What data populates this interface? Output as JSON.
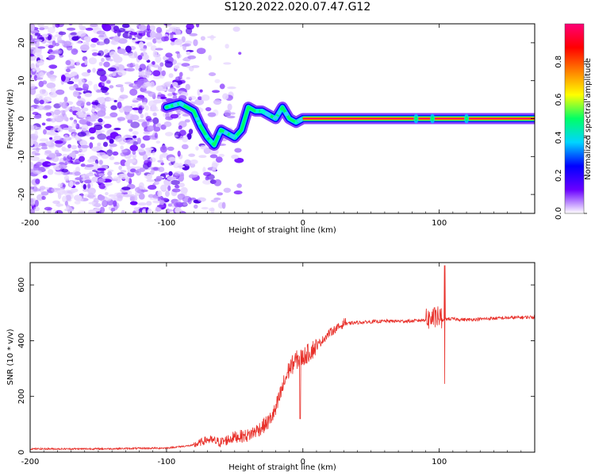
{
  "title": "S120.2022.020.07.47.G12",
  "chart_data": [
    {
      "type": "heatmap",
      "xlabel": "Height of straight line (km)",
      "ylabel": "Frequency (Hz)",
      "xlim": [
        -200,
        170
      ],
      "ylim": [
        -25,
        25
      ],
      "x_ticks": [
        -200,
        -100,
        0,
        100
      ],
      "y_ticks": [
        -20,
        -10,
        0,
        10,
        20
      ],
      "colorbar": {
        "label": "Normalized spectral amplitude",
        "range": [
          0,
          1
        ],
        "ticks": [
          "0.0",
          "0.2",
          "0.4",
          "0.6",
          "0.8"
        ],
        "colors": [
          "#ffffff",
          "#6a00ff",
          "#0000ff",
          "#00d5ff",
          "#00ff66",
          "#ffff00",
          "#ff8000",
          "#ff0000",
          "#ff0077"
        ]
      },
      "ridge": {
        "x": [
          -100,
          -90,
          -80,
          -75,
          -70,
          -65,
          -60,
          -55,
          -50,
          -45,
          -40,
          -35,
          -30,
          -25,
          -20,
          -15,
          -10,
          -5,
          0,
          10,
          50,
          100,
          150,
          170
        ],
        "y": [
          3,
          4,
          2,
          -2,
          -5,
          -7,
          -3,
          -4,
          -5,
          -3,
          3,
          2,
          2,
          1,
          0,
          3,
          0,
          -1,
          0,
          0,
          0,
          0,
          0,
          0
        ]
      }
    },
    {
      "type": "line",
      "xlabel": "Height of straight line (km)",
      "ylabel": "SNR (10 * v/v)",
      "xlim": [
        -200,
        170
      ],
      "ylim": [
        0,
        680
      ],
      "x_ticks": [
        -200,
        -100,
        0,
        100
      ],
      "y_ticks": [
        0,
        200,
        400,
        600
      ],
      "color": "#e8302a",
      "series": [
        {
          "x": [
            -200,
            -150,
            -100,
            -80,
            -70,
            -60,
            -50,
            -40,
            -30,
            -25,
            -20,
            -15,
            -10,
            -5,
            0,
            10,
            20,
            30,
            40,
            60,
            80,
            90,
            95,
            100,
            103,
            105,
            110,
            120,
            140,
            170
          ],
          "y": [
            12,
            12,
            15,
            25,
            45,
            35,
            55,
            60,
            90,
            110,
            150,
            230,
            300,
            330,
            340,
            380,
            430,
            460,
            465,
            470,
            470,
            475,
            480,
            485,
            470,
            478,
            478,
            475,
            480,
            485
          ]
        }
      ]
    }
  ]
}
